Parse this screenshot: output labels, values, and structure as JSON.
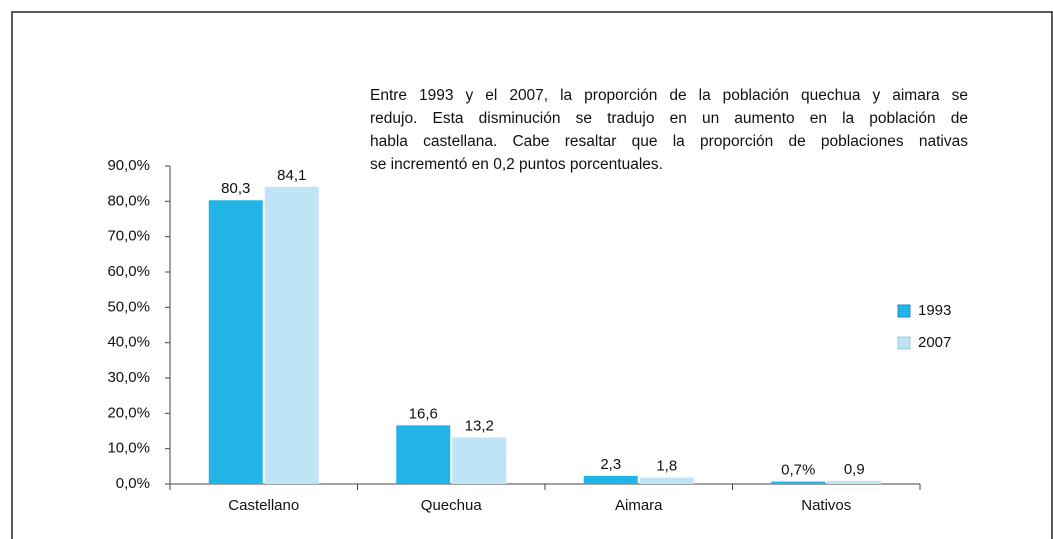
{
  "chart_data": {
    "type": "bar",
    "annotation": [
      "Entre 1993 y el 2007, la proporción de la población quechua y aimara se",
      "redujo. Esta disminución se tradujo en un aumento en la población de",
      "habla castellana. Cabe resaltar que la proporción de poblaciones nativas",
      "se incrementó en 0,2 puntos porcentuales."
    ],
    "categories": [
      "Castellano",
      "Quechua",
      "Aimara",
      "Nativos"
    ],
    "series": [
      {
        "name": "1993",
        "color": "#22b4e6",
        "values": [
          80.3,
          16.6,
          2.3,
          0.7
        ],
        "value_labels": [
          "80,3",
          "16,6",
          "2,3",
          "0,7%"
        ]
      },
      {
        "name": "2007",
        "color": "#bfe4f6",
        "values": [
          84.1,
          13.2,
          1.8,
          0.9
        ],
        "value_labels": [
          "84,1",
          "13,2",
          "1,8",
          "0,9"
        ]
      }
    ],
    "ylim": [
      0,
      90
    ],
    "yticks": [
      {
        "value": 0,
        "label": "0,0%"
      },
      {
        "value": 10,
        "label": "10,0%"
      },
      {
        "value": 20,
        "label": "20,0%"
      },
      {
        "value": 30,
        "label": "30,0%"
      },
      {
        "value": 40,
        "label": "40,0%"
      },
      {
        "value": 50,
        "label": "50,0%"
      },
      {
        "value": 60,
        "label": "60,0%"
      },
      {
        "value": 70,
        "label": "70,0%"
      },
      {
        "value": 80,
        "label": "80,0%"
      },
      {
        "value": 90,
        "label": "90,0%"
      }
    ],
    "legend": "right"
  }
}
